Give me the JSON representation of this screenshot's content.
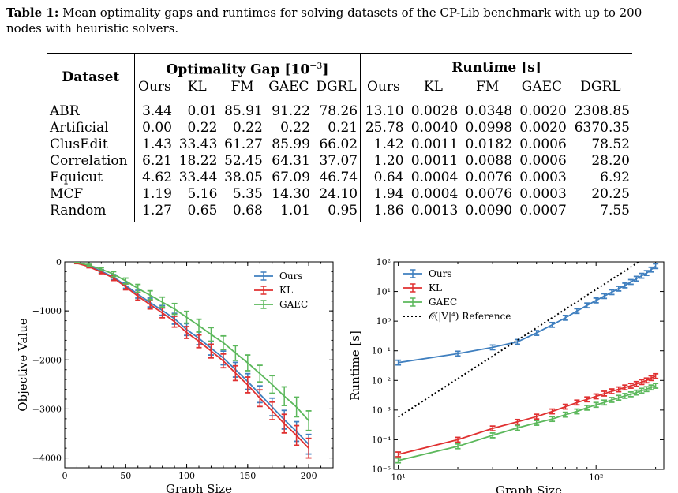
{
  "caption": {
    "label": "Table 1:",
    "text": "Mean optimality gaps and runtimes for solving datasets of the CP-Lib benchmark with up to 200 nodes with heuristic solvers."
  },
  "table": {
    "dataset_header": "Dataset",
    "gap_header": "Optimality Gap [10",
    "gap_exp": "−3",
    "gap_close": "]",
    "runtime_header": "Runtime [s]",
    "columns": [
      "Ours",
      "KL",
      "FM",
      "GAEC",
      "DGRL"
    ],
    "rows": [
      {
        "name": "ABR",
        "gap": [
          "3.44",
          "0.01",
          "85.91",
          "91.22",
          "78.26"
        ],
        "gap_bold": [
          1
        ],
        "rt": [
          "13.10",
          "0.0028",
          "0.0348",
          "0.0020",
          "2308.85"
        ],
        "rt_bold": [
          3
        ]
      },
      {
        "name": "Artificial",
        "gap": [
          "0.00",
          "0.22",
          "0.22",
          "0.22",
          "0.21"
        ],
        "gap_bold": [
          0
        ],
        "rt": [
          "25.78",
          "0.0040",
          "0.0998",
          "0.0020",
          "6370.35"
        ],
        "rt_bold": [
          3
        ]
      },
      {
        "name": "ClusEdit",
        "gap": [
          "1.43",
          "33.43",
          "61.27",
          "85.99",
          "66.02"
        ],
        "gap_bold": [
          0
        ],
        "rt": [
          "1.42",
          "0.0011",
          "0.0182",
          "0.0006",
          "78.52"
        ],
        "rt_bold": [
          3
        ]
      },
      {
        "name": "Correlation",
        "gap": [
          "6.21",
          "18.22",
          "52.45",
          "64.31",
          "37.07"
        ],
        "gap_bold": [
          0
        ],
        "rt": [
          "1.20",
          "0.0011",
          "0.0088",
          "0.0006",
          "28.20"
        ],
        "rt_bold": [
          3
        ]
      },
      {
        "name": "Equicut",
        "gap": [
          "4.62",
          "33.44",
          "38.05",
          "67.09",
          "46.74"
        ],
        "gap_bold": [
          0
        ],
        "rt": [
          "0.64",
          "0.0004",
          "0.0076",
          "0.0003",
          "6.92"
        ],
        "rt_bold": [
          3
        ]
      },
      {
        "name": "MCF",
        "gap": [
          "1.19",
          "5.16",
          "5.35",
          "14.30",
          "24.10"
        ],
        "gap_bold": [
          0
        ],
        "rt": [
          "1.94",
          "0.0004",
          "0.0076",
          "0.0003",
          "20.25"
        ],
        "rt_bold": [
          3
        ]
      },
      {
        "name": "Random",
        "gap": [
          "1.27",
          "0.65",
          "0.68",
          "1.01",
          "0.95"
        ],
        "gap_bold": [
          1
        ],
        "rt": [
          "1.86",
          "0.0013",
          "0.0090",
          "0.0007",
          "7.55"
        ],
        "rt_bold": [
          3
        ]
      }
    ]
  },
  "colors": {
    "ours": "#3f7fbf",
    "kl": "#e03030",
    "gaec": "#5cb85c",
    "ref": "#000000"
  },
  "chart_data": [
    {
      "type": "line",
      "xlabel": "Graph Size",
      "ylabel": "Objective Value",
      "xlim": [
        0,
        220
      ],
      "ylim": [
        -4200,
        0
      ],
      "xticks": [
        0,
        50,
        100,
        150,
        200
      ],
      "yticks": [
        0,
        -1000,
        -2000,
        -3000,
        -4000
      ],
      "x": [
        10,
        20,
        30,
        40,
        50,
        60,
        70,
        80,
        90,
        100,
        110,
        120,
        130,
        140,
        150,
        160,
        170,
        180,
        190,
        200
      ],
      "series": [
        {
          "name": "Ours",
          "color": "#3f7fbf",
          "values": [
            -20,
            -90,
            -190,
            -310,
            -480,
            -660,
            -830,
            -990,
            -1160,
            -1380,
            -1560,
            -1760,
            -1960,
            -2200,
            -2440,
            -2700,
            -2960,
            -3220,
            -3460,
            -3720
          ],
          "err": [
            10,
            20,
            30,
            50,
            60,
            80,
            90,
            100,
            110,
            120,
            130,
            140,
            140,
            150,
            160,
            170,
            180,
            190,
            200,
            200
          ]
        },
        {
          "name": "KL",
          "color": "#e03030",
          "values": [
            -25,
            -100,
            -210,
            -330,
            -510,
            -700,
            -870,
            -1040,
            -1220,
            -1440,
            -1620,
            -1820,
            -2020,
            -2270,
            -2510,
            -2780,
            -3040,
            -3300,
            -3540,
            -3800
          ],
          "err": [
            10,
            20,
            30,
            50,
            60,
            80,
            90,
            100,
            110,
            120,
            130,
            140,
            140,
            150,
            160,
            170,
            180,
            190,
            200,
            200
          ]
        },
        {
          "name": "GAEC",
          "color": "#5cb85c",
          "values": [
            -10,
            -70,
            -150,
            -250,
            -390,
            -540,
            -680,
            -820,
            -960,
            -1130,
            -1300,
            -1480,
            -1650,
            -1860,
            -2060,
            -2280,
            -2500,
            -2740,
            -2960,
            -3240
          ],
          "err": [
            10,
            20,
            30,
            50,
            60,
            80,
            90,
            100,
            110,
            120,
            130,
            140,
            140,
            150,
            160,
            170,
            180,
            190,
            200,
            200
          ]
        }
      ]
    },
    {
      "type": "line",
      "xlabel": "Graph Size",
      "ylabel": "Runtime [s]",
      "xscale": "log",
      "yscale": "log",
      "xlim": [
        9.5,
        220
      ],
      "ylim": [
        1e-05,
        100
      ],
      "xticks": [
        10,
        100
      ],
      "xtick_labels": [
        "10¹",
        "10²"
      ],
      "yticks": [
        1e-05,
        0.0001,
        0.001,
        0.01,
        0.1,
        1,
        10,
        100
      ],
      "ytick_labels": [
        "10⁻⁵",
        "10⁻⁴",
        "10⁻³",
        "10⁻²",
        "10⁻¹",
        "10⁰",
        "10¹",
        "10²"
      ],
      "series": [
        {
          "name": "Ours",
          "color": "#3f7fbf",
          "x": [
            10,
            20,
            30,
            40,
            50,
            60,
            70,
            80,
            90,
            100,
            110,
            120,
            130,
            140,
            150,
            160,
            170,
            180,
            190,
            200
          ],
          "values": [
            0.04,
            0.08,
            0.13,
            0.2,
            0.4,
            0.75,
            1.3,
            2.2,
            3.4,
            5.0,
            7.0,
            9.5,
            12.5,
            16,
            21,
            27,
            34,
            42,
            55,
            72
          ]
        },
        {
          "name": "KL",
          "color": "#e03030",
          "x": [
            10,
            20,
            30,
            40,
            50,
            60,
            70,
            80,
            90,
            100,
            110,
            120,
            130,
            140,
            150,
            160,
            170,
            180,
            190,
            200
          ],
          "values": [
            3.2e-05,
            0.0001,
            0.00024,
            0.0004,
            0.0006,
            0.0009,
            0.0013,
            0.0018,
            0.0023,
            0.0029,
            0.0036,
            0.0043,
            0.005,
            0.0058,
            0.0066,
            0.0076,
            0.0088,
            0.01,
            0.012,
            0.014
          ]
        },
        {
          "name": "GAEC",
          "color": "#5cb85c",
          "x": [
            10,
            20,
            30,
            40,
            50,
            60,
            70,
            80,
            90,
            100,
            110,
            120,
            130,
            140,
            150,
            160,
            170,
            180,
            190,
            200
          ],
          "values": [
            2e-05,
            6e-05,
            0.00014,
            0.00025,
            0.00037,
            0.0005,
            0.0007,
            0.0009,
            0.0012,
            0.0015,
            0.0018,
            0.0022,
            0.0026,
            0.003,
            0.0034,
            0.0039,
            0.0045,
            0.0051,
            0.0058,
            0.0066
          ]
        },
        {
          "name": "𝒪(|V|⁴) Reference",
          "color": "#000000",
          "style": "dotted",
          "x": [
            10,
            200
          ],
          "values": [
            0.00058,
            232
          ]
        }
      ]
    }
  ]
}
